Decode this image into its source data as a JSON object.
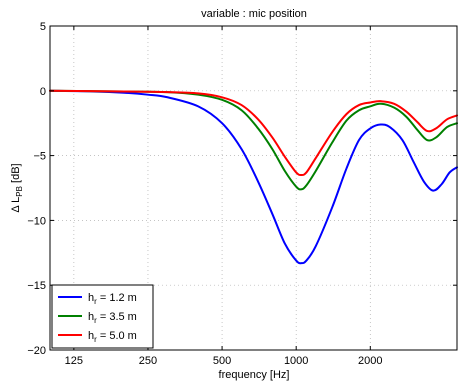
{
  "chart_data": {
    "type": "line",
    "title": "variable : mic position",
    "xlabel": "frequency [Hz]",
    "ylabel": {
      "main": "Δ L",
      "sub": "PB",
      "unit": " [dB]"
    },
    "x_scale": "log",
    "xlim": [
      100,
      4500
    ],
    "ylim": [
      -20,
      5
    ],
    "xticks": [
      {
        "value": 125,
        "label": "125"
      },
      {
        "value": 250,
        "label": "250"
      },
      {
        "value": 500,
        "label": "500"
      },
      {
        "value": 1000,
        "label": "1000"
      },
      {
        "value": 2000,
        "label": "2000"
      }
    ],
    "yticks": [
      {
        "value": 5,
        "label": "5"
      },
      {
        "value": 0,
        "label": "0"
      },
      {
        "value": -5,
        "label": "−5"
      },
      {
        "value": -10,
        "label": "−10"
      },
      {
        "value": -15,
        "label": "−15"
      },
      {
        "value": -20,
        "label": "−20"
      }
    ],
    "grid": true,
    "legend_position": "bottom-left",
    "series": [
      {
        "name": "h_r = 1.2 m",
        "legend": {
          "main": "h",
          "sub": "r",
          "rest": " = 1.2 m"
        },
        "color": "#0000ff",
        "points": [
          [
            100,
            0
          ],
          [
            150,
            -0.05
          ],
          [
            200,
            -0.15
          ],
          [
            250,
            -0.3
          ],
          [
            300,
            -0.5
          ],
          [
            400,
            -1.2
          ],
          [
            500,
            -2.5
          ],
          [
            600,
            -4.5
          ],
          [
            700,
            -7.0
          ],
          [
            800,
            -9.5
          ],
          [
            900,
            -11.8
          ],
          [
            1000,
            -13.1
          ],
          [
            1050,
            -13.3
          ],
          [
            1100,
            -13.1
          ],
          [
            1200,
            -12.0
          ],
          [
            1400,
            -9.0
          ],
          [
            1600,
            -6.0
          ],
          [
            1800,
            -3.8
          ],
          [
            2000,
            -2.9
          ],
          [
            2200,
            -2.6
          ],
          [
            2400,
            -2.8
          ],
          [
            2700,
            -3.8
          ],
          [
            3000,
            -5.5
          ],
          [
            3300,
            -7.0
          ],
          [
            3600,
            -7.7
          ],
          [
            3900,
            -7.2
          ],
          [
            4200,
            -6.3
          ],
          [
            4500,
            -5.9
          ]
        ]
      },
      {
        "name": "h_r = 3.5 m",
        "legend": {
          "main": "h",
          "sub": "r",
          "rest": " = 3.5 m"
        },
        "color": "#008000",
        "points": [
          [
            100,
            0
          ],
          [
            200,
            -0.05
          ],
          [
            300,
            -0.1
          ],
          [
            400,
            -0.3
          ],
          [
            500,
            -0.7
          ],
          [
            600,
            -1.5
          ],
          [
            700,
            -2.9
          ],
          [
            800,
            -4.5
          ],
          [
            900,
            -6.2
          ],
          [
            1000,
            -7.4
          ],
          [
            1050,
            -7.6
          ],
          [
            1100,
            -7.3
          ],
          [
            1200,
            -6.2
          ],
          [
            1400,
            -4.0
          ],
          [
            1600,
            -2.3
          ],
          [
            1800,
            -1.5
          ],
          [
            2000,
            -1.2
          ],
          [
            2200,
            -1.0
          ],
          [
            2500,
            -1.3
          ],
          [
            2800,
            -2.0
          ],
          [
            3100,
            -3.0
          ],
          [
            3400,
            -3.8
          ],
          [
            3700,
            -3.6
          ],
          [
            4100,
            -2.8
          ],
          [
            4500,
            -2.5
          ]
        ]
      },
      {
        "name": "h_r = 5.0 m",
        "legend": {
          "main": "h",
          "sub": "r",
          "rest": " = 5.0 m"
        },
        "color": "#ff0000",
        "points": [
          [
            100,
            0
          ],
          [
            200,
            -0.05
          ],
          [
            300,
            -0.1
          ],
          [
            400,
            -0.2
          ],
          [
            500,
            -0.5
          ],
          [
            600,
            -1.1
          ],
          [
            700,
            -2.2
          ],
          [
            800,
            -3.6
          ],
          [
            900,
            -5.1
          ],
          [
            1000,
            -6.3
          ],
          [
            1050,
            -6.5
          ],
          [
            1100,
            -6.3
          ],
          [
            1200,
            -5.2
          ],
          [
            1400,
            -3.2
          ],
          [
            1600,
            -1.8
          ],
          [
            1800,
            -1.1
          ],
          [
            2000,
            -0.9
          ],
          [
            2200,
            -0.8
          ],
          [
            2500,
            -1.0
          ],
          [
            2800,
            -1.6
          ],
          [
            3100,
            -2.4
          ],
          [
            3400,
            -3.1
          ],
          [
            3700,
            -2.9
          ],
          [
            4100,
            -2.2
          ],
          [
            4500,
            -1.9
          ]
        ]
      }
    ]
  }
}
